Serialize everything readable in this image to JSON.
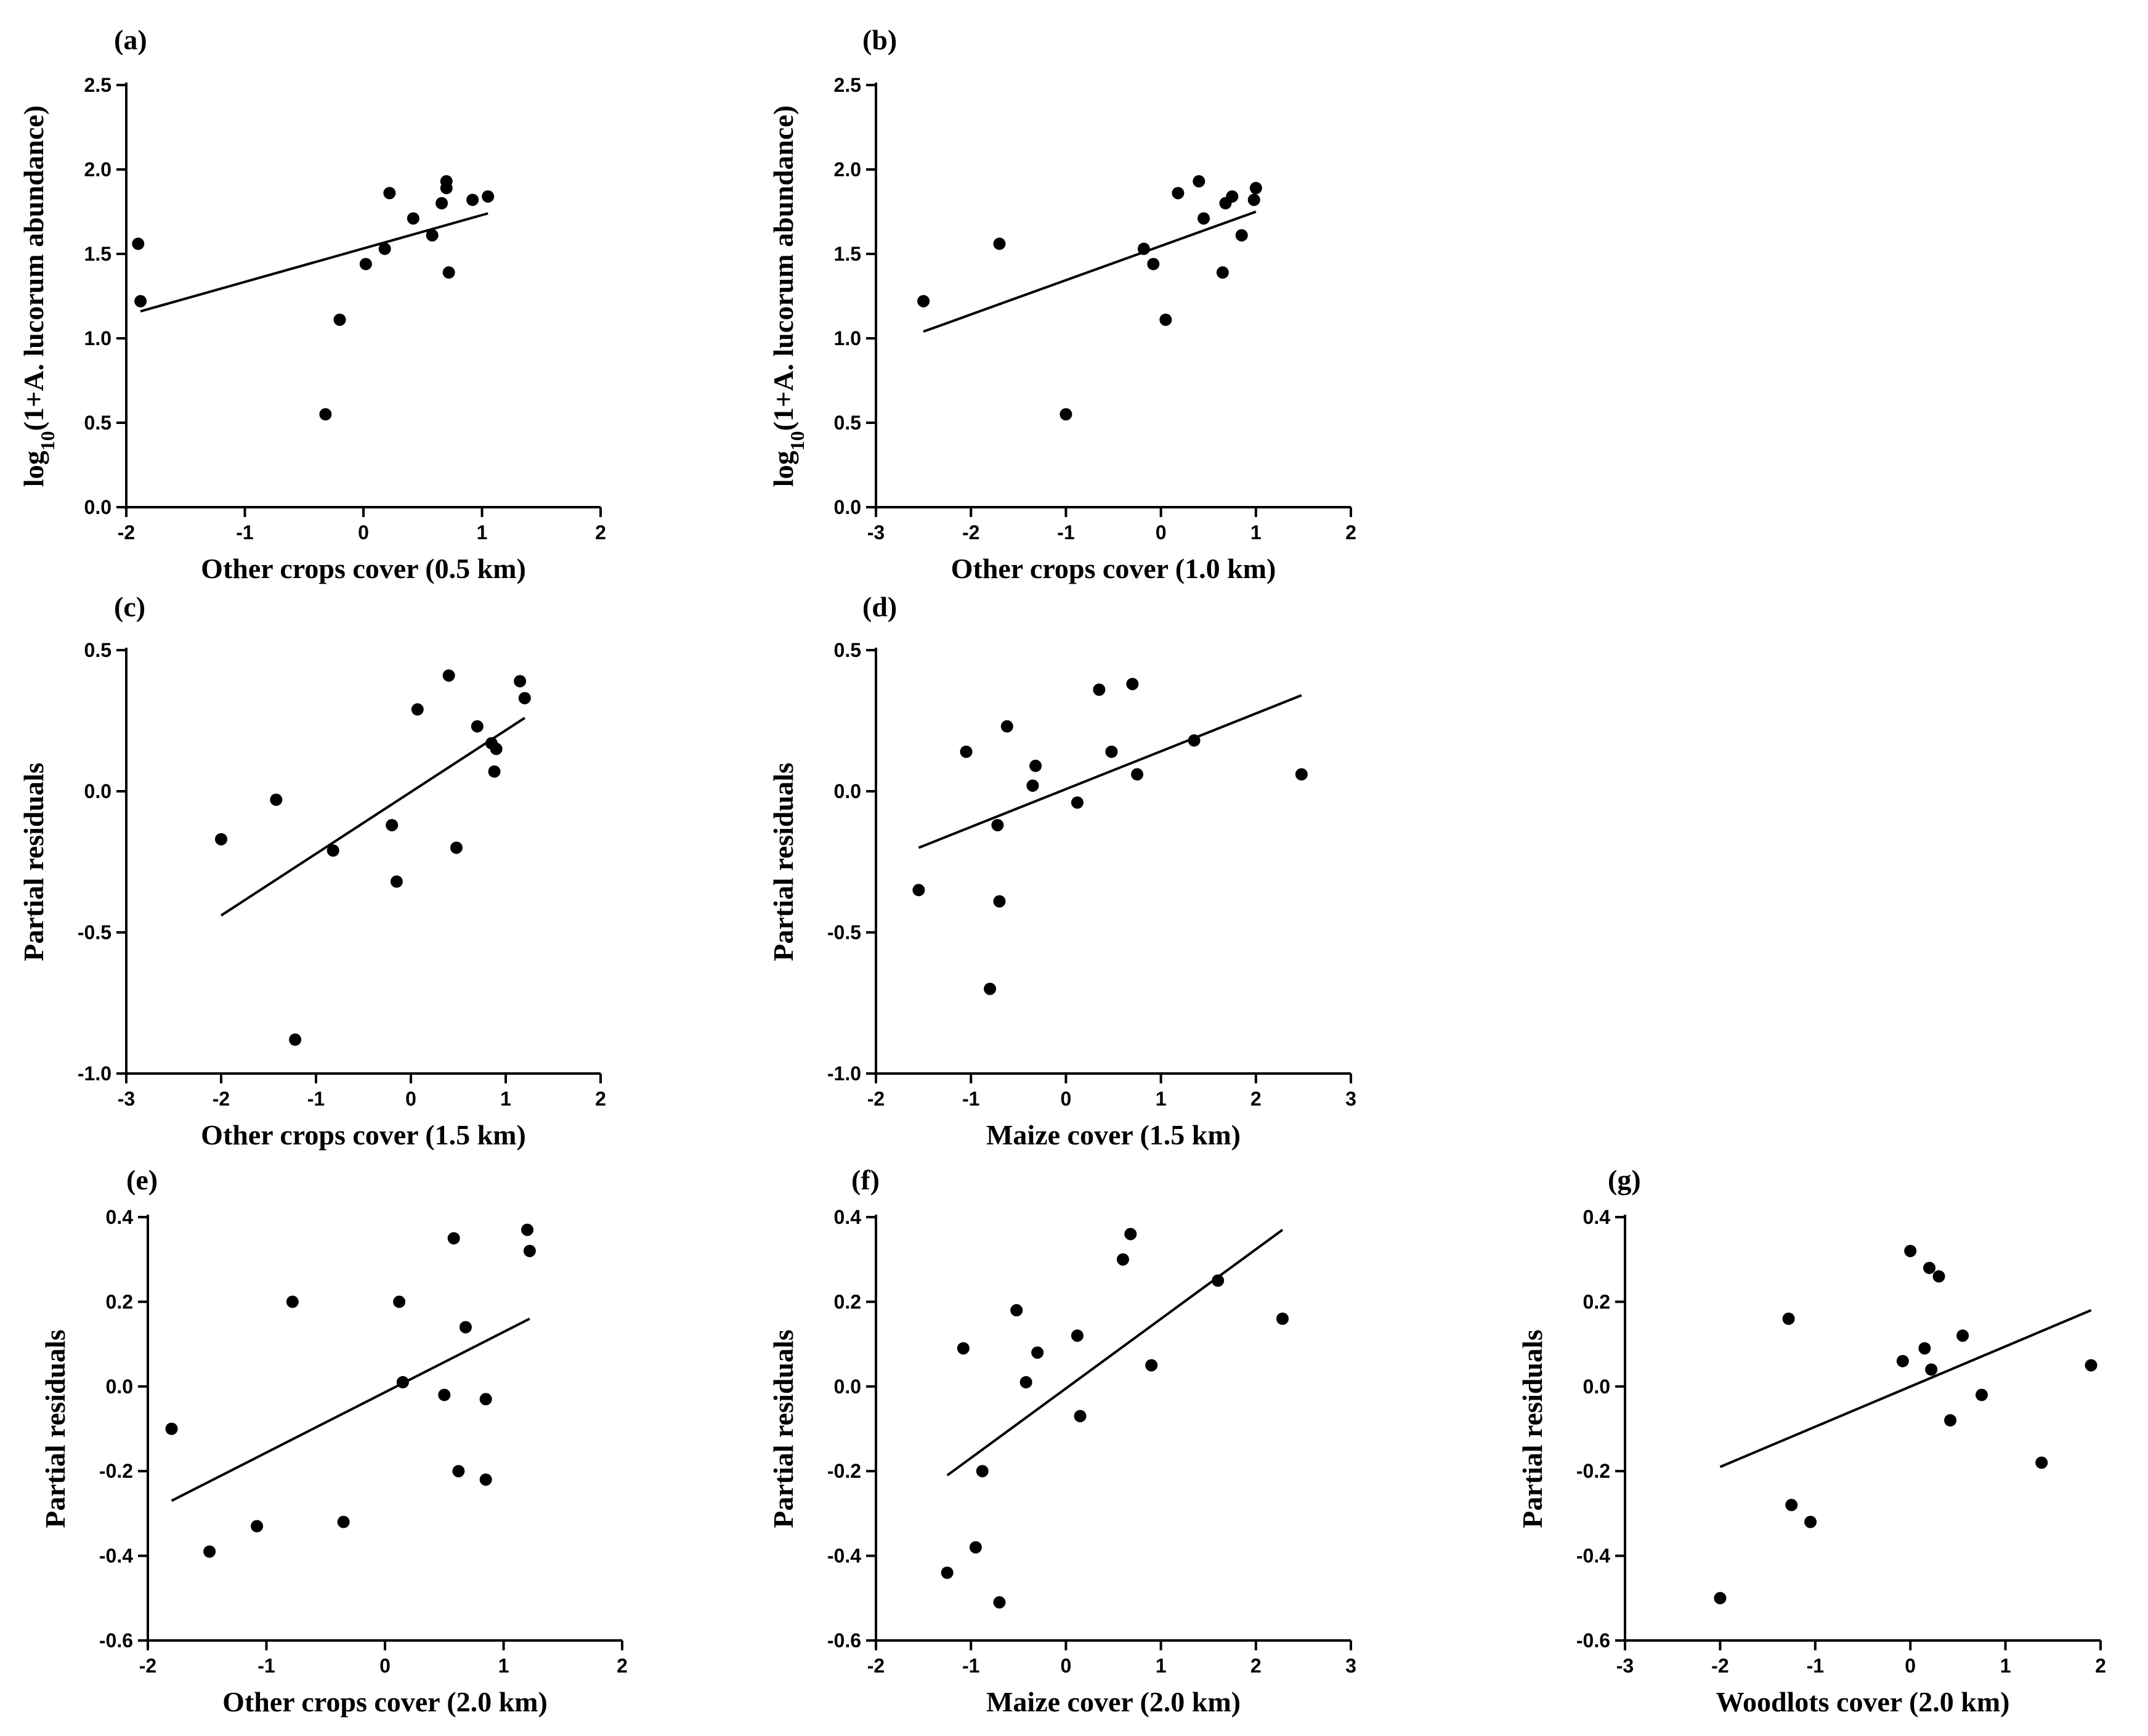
{
  "figure": {
    "description_label": "Partial residual plots"
  },
  "chart_data": [
    {
      "id": "a",
      "letter": "(a)",
      "type": "scatter",
      "xlabel": "Other crops cover (0.5 km)",
      "ylabel_prefix": "log",
      "ylabel_sub": "10",
      "ylabel_rest": "(1+A. lucorum  abundance)",
      "xlim": [
        -2,
        2
      ],
      "ylim": [
        0,
        2.5
      ],
      "xticks": [
        -2,
        -1,
        0,
        1,
        2
      ],
      "yticks": [
        0,
        0.5,
        1,
        1.5,
        2,
        2.5
      ],
      "xtick_labels": [
        "-2",
        "-1",
        "0",
        "1",
        "2"
      ],
      "ytick_labels": [
        "0.0",
        "0.5",
        "1.0",
        "1.5",
        "2.0",
        "2.5"
      ],
      "x": [
        -1.9,
        -1.88,
        -0.32,
        -0.2,
        0.02,
        0.18,
        0.22,
        0.42,
        0.58,
        0.66,
        0.7,
        0.7,
        0.72,
        0.92,
        1.05
      ],
      "y": [
        1.56,
        1.22,
        0.55,
        1.11,
        1.44,
        1.53,
        1.86,
        1.71,
        1.61,
        1.8,
        1.89,
        1.93,
        1.39,
        1.82,
        1.84
      ],
      "fit": {
        "x": [
          -1.88,
          1.05
        ],
        "y": [
          1.16,
          1.74
        ]
      }
    },
    {
      "id": "b",
      "letter": "(b)",
      "type": "scatter",
      "xlabel": "Other crops cover (1.0 km)",
      "ylabel_prefix": "log",
      "ylabel_sub": "10",
      "ylabel_rest": "(1+A. lucorum  abundance)",
      "xlim": [
        -3,
        2
      ],
      "ylim": [
        0,
        2.5
      ],
      "xticks": [
        -3,
        -2,
        -1,
        0,
        1,
        2
      ],
      "yticks": [
        0,
        0.5,
        1,
        1.5,
        2,
        2.5
      ],
      "xtick_labels": [
        "-3",
        "-2",
        "-1",
        "0",
        "1",
        "2"
      ],
      "ytick_labels": [
        "0.0",
        "0.5",
        "1.0",
        "1.5",
        "2.0",
        "2.5"
      ],
      "x": [
        -2.5,
        -1.7,
        -1.0,
        -0.18,
        -0.08,
        0.05,
        0.18,
        0.4,
        0.45,
        0.65,
        0.68,
        0.75,
        0.85,
        0.98,
        1.0
      ],
      "y": [
        1.22,
        1.56,
        0.55,
        1.53,
        1.44,
        1.11,
        1.86,
        1.93,
        1.71,
        1.39,
        1.8,
        1.84,
        1.61,
        1.82,
        1.89
      ],
      "fit": {
        "x": [
          -2.5,
          1.0
        ],
        "y": [
          1.04,
          1.75
        ]
      }
    },
    {
      "id": "c",
      "letter": "(c)",
      "type": "scatter",
      "xlabel": "Other crops cover (1.5 km)",
      "ylabel": "Partial residuals",
      "xlim": [
        -3,
        2
      ],
      "ylim": [
        -1,
        0.5
      ],
      "xticks": [
        -3,
        -2,
        -1,
        0,
        1,
        2
      ],
      "yticks": [
        -1,
        -0.5,
        0,
        0.5
      ],
      "xtick_labels": [
        "-3",
        "-2",
        "-1",
        "0",
        "1",
        "2"
      ],
      "ytick_labels": [
        "-1.0",
        "-0.5",
        "0.0",
        "0.5"
      ],
      "x": [
        -2.0,
        -1.42,
        -1.22,
        -0.82,
        -0.2,
        -0.15,
        0.07,
        0.4,
        0.48,
        0.7,
        0.85,
        0.88,
        0.9,
        1.15,
        1.2
      ],
      "y": [
        -0.17,
        -0.03,
        -0.88,
        -0.21,
        -0.12,
        -0.32,
        0.29,
        0.41,
        -0.2,
        0.23,
        0.17,
        0.07,
        0.15,
        0.39,
        0.33
      ],
      "fit": {
        "x": [
          -2.0,
          1.2
        ],
        "y": [
          -0.44,
          0.26
        ]
      }
    },
    {
      "id": "d",
      "letter": "(d)",
      "type": "scatter",
      "xlabel": "Maize cover (1.5 km)",
      "ylabel": "Partial residuals",
      "xlim": [
        -2,
        3
      ],
      "ylim": [
        -1,
        0.5
      ],
      "xticks": [
        -2,
        -1,
        0,
        1,
        2,
        3
      ],
      "yticks": [
        -1,
        -0.5,
        0,
        0.5
      ],
      "xtick_labels": [
        "-2",
        "-1",
        "0",
        "1",
        "2",
        "3"
      ],
      "ytick_labels": [
        "-1.0",
        "-0.5",
        "0.0",
        "0.5"
      ],
      "x": [
        -1.55,
        -1.05,
        -0.8,
        -0.72,
        -0.7,
        -0.62,
        -0.35,
        -0.32,
        0.12,
        0.35,
        0.48,
        0.7,
        0.75,
        1.35,
        2.48
      ],
      "y": [
        -0.35,
        0.14,
        -0.7,
        -0.12,
        -0.39,
        0.23,
        0.02,
        0.09,
        -0.04,
        0.36,
        0.14,
        0.38,
        0.06,
        0.18,
        0.06
      ],
      "fit": {
        "x": [
          -1.55,
          2.48
        ],
        "y": [
          -0.2,
          0.34
        ]
      }
    },
    {
      "id": "e",
      "letter": "(e)",
      "type": "scatter",
      "xlabel": "Other crops cover (2.0 km)",
      "ylabel": "Partial residuals",
      "xlim": [
        -2,
        2
      ],
      "ylim": [
        -0.6,
        0.4
      ],
      "xticks": [
        -2,
        -1,
        0,
        1,
        2
      ],
      "yticks": [
        -0.6,
        -0.4,
        -0.2,
        0,
        0.2,
        0.4
      ],
      "xtick_labels": [
        "-2",
        "-1",
        "0",
        "1",
        "2"
      ],
      "ytick_labels": [
        "-0.6",
        "-0.4",
        "-0.2",
        "0.0",
        "0.2",
        "0.4"
      ],
      "x": [
        -1.8,
        -1.48,
        -1.08,
        -0.78,
        -0.35,
        0.12,
        0.15,
        0.5,
        0.58,
        0.62,
        0.68,
        0.85,
        0.85,
        1.2,
        1.22
      ],
      "y": [
        -0.1,
        -0.39,
        -0.33,
        0.2,
        -0.32,
        0.2,
        0.01,
        -0.02,
        0.35,
        -0.2,
        0.14,
        -0.03,
        -0.22,
        0.37,
        0.32
      ],
      "fit": {
        "x": [
          -1.8,
          1.22
        ],
        "y": [
          -0.27,
          0.16
        ]
      }
    },
    {
      "id": "f",
      "letter": "(f)",
      "type": "scatter",
      "xlabel": "Maize cover (2.0 km)",
      "ylabel": "Partial residuals",
      "xlim": [
        -2,
        3
      ],
      "ylim": [
        -0.6,
        0.4
      ],
      "xticks": [
        -2,
        -1,
        0,
        1,
        2,
        3
      ],
      "yticks": [
        -0.6,
        -0.4,
        -0.2,
        0,
        0.2,
        0.4
      ],
      "xtick_labels": [
        "-2",
        "-1",
        "0",
        "1",
        "2",
        "3"
      ],
      "ytick_labels": [
        "-0.6",
        "-0.4",
        "-0.2",
        "0.0",
        "0.2",
        "0.4"
      ],
      "x": [
        -1.25,
        -1.08,
        -0.95,
        -0.88,
        -0.7,
        -0.52,
        -0.42,
        -0.3,
        0.12,
        0.15,
        0.6,
        0.68,
        0.9,
        1.6,
        2.28
      ],
      "y": [
        -0.44,
        0.09,
        -0.38,
        -0.2,
        -0.51,
        0.18,
        0.01,
        0.08,
        0.12,
        -0.07,
        0.3,
        0.36,
        0.05,
        0.25,
        0.16
      ],
      "fit": {
        "x": [
          -1.25,
          2.28
        ],
        "y": [
          -0.21,
          0.37
        ]
      }
    },
    {
      "id": "g",
      "letter": "(g)",
      "type": "scatter",
      "xlabel": "Woodlots cover (2.0 km)",
      "ylabel": "Partial residuals",
      "xlim": [
        -3,
        2
      ],
      "ylim": [
        -0.6,
        0.4
      ],
      "xticks": [
        -3,
        -2,
        -1,
        0,
        1,
        2
      ],
      "yticks": [
        -0.6,
        -0.4,
        -0.2,
        0,
        0.2,
        0.4
      ],
      "xtick_labels": [
        "-3",
        "-2",
        "-1",
        "0",
        "1",
        "2"
      ],
      "ytick_labels": [
        "-0.6",
        "-0.4",
        "-0.2",
        "0.0",
        "0.2",
        "0.4"
      ],
      "x": [
        -2.0,
        -1.28,
        -1.25,
        -1.05,
        -0.08,
        0.0,
        0.15,
        0.2,
        0.22,
        0.3,
        0.42,
        0.55,
        0.75,
        1.38,
        1.9
      ],
      "y": [
        -0.5,
        0.16,
        -0.28,
        -0.32,
        0.06,
        0.32,
        0.09,
        0.28,
        0.04,
        0.26,
        -0.08,
        0.12,
        -0.02,
        -0.18,
        0.05
      ],
      "fit": {
        "x": [
          -2.0,
          1.9
        ],
        "y": [
          -0.19,
          0.18
        ]
      }
    }
  ]
}
